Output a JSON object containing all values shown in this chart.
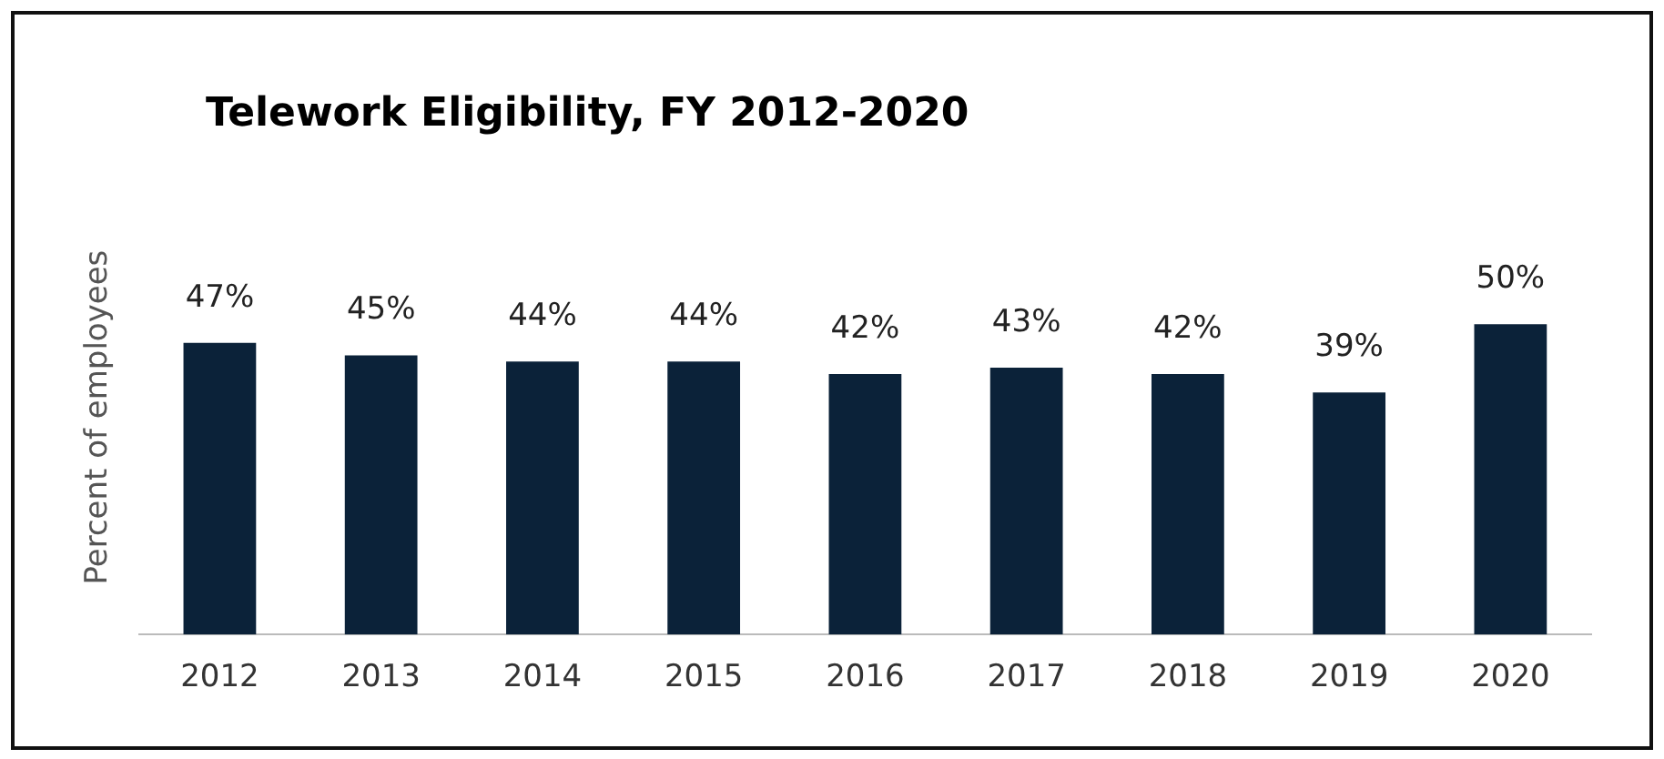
{
  "chart_data": {
    "type": "bar",
    "title": "Telework Eligibility, FY 2012-2020",
    "ylabel": "Percent of employees",
    "categories": [
      "2012",
      "2013",
      "2014",
      "2015",
      "2016",
      "2017",
      "2018",
      "2019",
      "2020"
    ],
    "values": [
      47,
      45,
      44,
      44,
      42,
      43,
      42,
      39,
      50
    ],
    "value_labels": [
      "47%",
      "45%",
      "44%",
      "44%",
      "42%",
      "43%",
      "42%",
      "39%",
      "50%"
    ],
    "color": "#0b2239",
    "grid": false,
    "legend": false
  }
}
